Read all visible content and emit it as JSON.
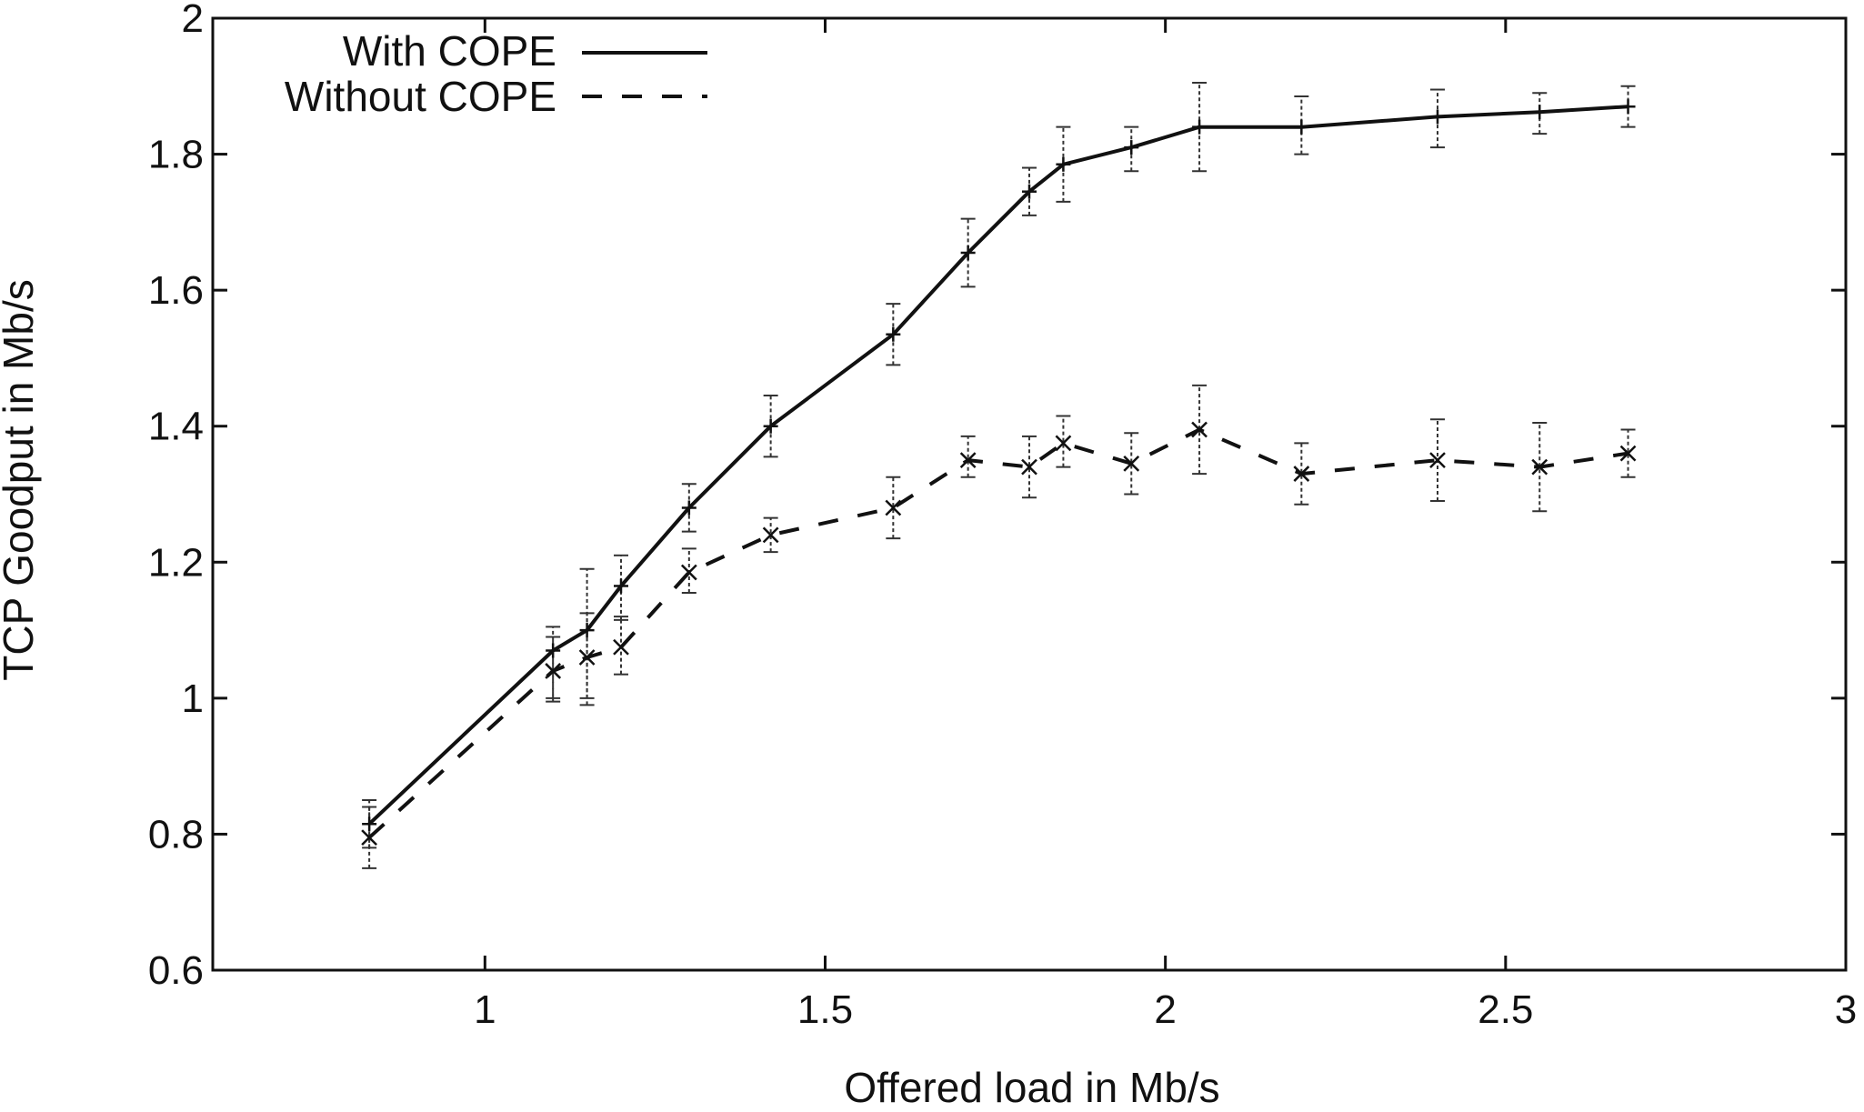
{
  "chart_data": {
    "type": "line",
    "title": "",
    "xlabel": "Offered load in Mb/s",
    "ylabel": "TCP Goodput in Mb/s",
    "xlim": [
      0.6,
      3
    ],
    "ylim": [
      0.6,
      2
    ],
    "xticks": [
      1,
      1.5,
      2,
      2.5,
      3
    ],
    "yticks": [
      0.6,
      0.8,
      1,
      1.2,
      1.4,
      1.6,
      1.8,
      2
    ],
    "x_tick_labels": [
      "1",
      "1.5",
      "2",
      "2.5",
      "3"
    ],
    "y_tick_labels": [
      "0.6",
      "0.8",
      "1",
      "1.2",
      "1.4",
      "1.6",
      "1.8",
      "2"
    ],
    "grid": false,
    "legend_position": "top-left",
    "series": [
      {
        "name": "With COPE",
        "line_style": "solid",
        "marker": "plus",
        "color": "#111111",
        "points": [
          {
            "x": 0.83,
            "y": 0.815,
            "err_low": 0.78,
            "err_high": 0.85
          },
          {
            "x": 1.1,
            "y": 1.07,
            "err_low": 1.0,
            "err_high": 1.105
          },
          {
            "x": 1.15,
            "y": 1.1,
            "err_low": 1.0,
            "err_high": 1.19
          },
          {
            "x": 1.2,
            "y": 1.165,
            "err_low": 1.115,
            "err_high": 1.21
          },
          {
            "x": 1.3,
            "y": 1.28,
            "err_low": 1.245,
            "err_high": 1.315
          },
          {
            "x": 1.42,
            "y": 1.4,
            "err_low": 1.355,
            "err_high": 1.445
          },
          {
            "x": 1.6,
            "y": 1.535,
            "err_low": 1.49,
            "err_high": 1.58
          },
          {
            "x": 1.71,
            "y": 1.655,
            "err_low": 1.605,
            "err_high": 1.705
          },
          {
            "x": 1.8,
            "y": 1.745,
            "err_low": 1.71,
            "err_high": 1.78
          },
          {
            "x": 1.85,
            "y": 1.785,
            "err_low": 1.73,
            "err_high": 1.84
          },
          {
            "x": 1.95,
            "y": 1.81,
            "err_low": 1.775,
            "err_high": 1.84
          },
          {
            "x": 2.05,
            "y": 1.84,
            "err_low": 1.775,
            "err_high": 1.905
          },
          {
            "x": 2.2,
            "y": 1.84,
            "err_low": 1.8,
            "err_high": 1.885
          },
          {
            "x": 2.4,
            "y": 1.855,
            "err_low": 1.81,
            "err_high": 1.895
          },
          {
            "x": 2.55,
            "y": 1.862,
            "err_low": 1.83,
            "err_high": 1.89
          },
          {
            "x": 2.68,
            "y": 1.87,
            "err_low": 1.84,
            "err_high": 1.9
          }
        ]
      },
      {
        "name": "Without COPE",
        "line_style": "dashed",
        "marker": "cross",
        "color": "#111111",
        "points": [
          {
            "x": 0.83,
            "y": 0.795,
            "err_low": 0.75,
            "err_high": 0.84
          },
          {
            "x": 1.1,
            "y": 1.04,
            "err_low": 0.995,
            "err_high": 1.09
          },
          {
            "x": 1.15,
            "y": 1.06,
            "err_low": 0.99,
            "err_high": 1.125
          },
          {
            "x": 1.2,
            "y": 1.075,
            "err_low": 1.035,
            "err_high": 1.12
          },
          {
            "x": 1.3,
            "y": 1.185,
            "err_low": 1.155,
            "err_high": 1.22
          },
          {
            "x": 1.42,
            "y": 1.24,
            "err_low": 1.215,
            "err_high": 1.265
          },
          {
            "x": 1.6,
            "y": 1.28,
            "err_low": 1.235,
            "err_high": 1.325
          },
          {
            "x": 1.71,
            "y": 1.35,
            "err_low": 1.325,
            "err_high": 1.385
          },
          {
            "x": 1.8,
            "y": 1.34,
            "err_low": 1.295,
            "err_high": 1.385
          },
          {
            "x": 1.85,
            "y": 1.375,
            "err_low": 1.34,
            "err_high": 1.415
          },
          {
            "x": 1.95,
            "y": 1.345,
            "err_low": 1.3,
            "err_high": 1.39
          },
          {
            "x": 2.05,
            "y": 1.395,
            "err_low": 1.33,
            "err_high": 1.46
          },
          {
            "x": 2.2,
            "y": 1.33,
            "err_low": 1.285,
            "err_high": 1.375
          },
          {
            "x": 2.4,
            "y": 1.35,
            "err_low": 1.29,
            "err_high": 1.41
          },
          {
            "x": 2.55,
            "y": 1.34,
            "err_low": 1.275,
            "err_high": 1.405
          },
          {
            "x": 2.68,
            "y": 1.36,
            "err_low": 1.325,
            "err_high": 1.395
          }
        ]
      }
    ]
  }
}
